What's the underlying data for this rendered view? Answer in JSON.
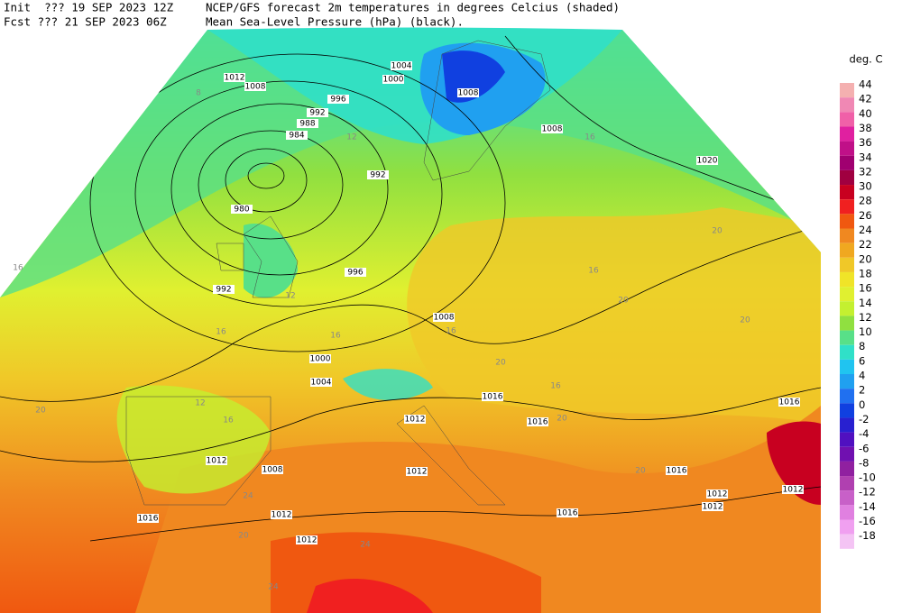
{
  "header": {
    "init": "Init  ??? 19 SEP 2023 12Z",
    "fcst": "Fcst ??? 21 SEP 2023 06Z",
    "title": "NCEP/GFS forecast 2m temperatures in degrees Celcius (shaded)",
    "subtitle": "Mean Sea-Level Pressure (hPa) (black)."
  },
  "legend": {
    "title": "deg. C",
    "levels": [
      {
        "value": 44,
        "color": "#f4b0b0"
      },
      {
        "value": 42,
        "color": "#f088b4"
      },
      {
        "value": 40,
        "color": "#f060a8"
      },
      {
        "value": 38,
        "color": "#e020a0"
      },
      {
        "value": 36,
        "color": "#c01088"
      },
      {
        "value": 34,
        "color": "#a00070"
      },
      {
        "value": 32,
        "color": "#a00040"
      },
      {
        "value": 30,
        "color": "#c80020"
      },
      {
        "value": 28,
        "color": "#f02020"
      },
      {
        "value": 26,
        "color": "#f05810"
      },
      {
        "value": 24,
        "color": "#f08820"
      },
      {
        "value": 22,
        "color": "#f0a820"
      },
      {
        "value": 20,
        "color": "#f0c828"
      },
      {
        "value": 18,
        "color": "#f0e428"
      },
      {
        "value": 16,
        "color": "#e0f030"
      },
      {
        "value": 14,
        "color": "#c4f030"
      },
      {
        "value": 12,
        "color": "#90e040"
      },
      {
        "value": 10,
        "color": "#58e088"
      },
      {
        "value": 8,
        "color": "#30e0c8"
      },
      {
        "value": 6,
        "color": "#20c4f0"
      },
      {
        "value": 4,
        "color": "#20a0f0"
      },
      {
        "value": 2,
        "color": "#2070f0"
      },
      {
        "value": 0,
        "color": "#1040e0"
      },
      {
        "value": -2,
        "color": "#2820d0"
      },
      {
        "value": -4,
        "color": "#5010c0"
      },
      {
        "value": -6,
        "color": "#7010b0"
      },
      {
        "value": -8,
        "color": "#9020a0"
      },
      {
        "value": -10,
        "color": "#b040b0"
      },
      {
        "value": -12,
        "color": "#c860c8"
      },
      {
        "value": -14,
        "color": "#e080e0"
      },
      {
        "value": -16,
        "color": "#f0a0f0"
      },
      {
        "value": -18,
        "color": "#f4c4f4"
      }
    ]
  },
  "isobar_labels": [
    1004,
    1000,
    996,
    992,
    988,
    984,
    1012,
    1008,
    1008,
    1008,
    1020,
    992,
    980,
    996,
    992,
    1008,
    1000,
    1004,
    1012,
    1016,
    1016,
    1016,
    1012,
    1008,
    1012,
    1016,
    1012,
    1012,
    1012,
    1016,
    1016,
    1012,
    1012
  ],
  "temp_labels": [
    16,
    20,
    16,
    12,
    16,
    16,
    12,
    20,
    24,
    24,
    20,
    16,
    20,
    20,
    16,
    20,
    20,
    24,
    12,
    16,
    16,
    20,
    8
  ]
}
